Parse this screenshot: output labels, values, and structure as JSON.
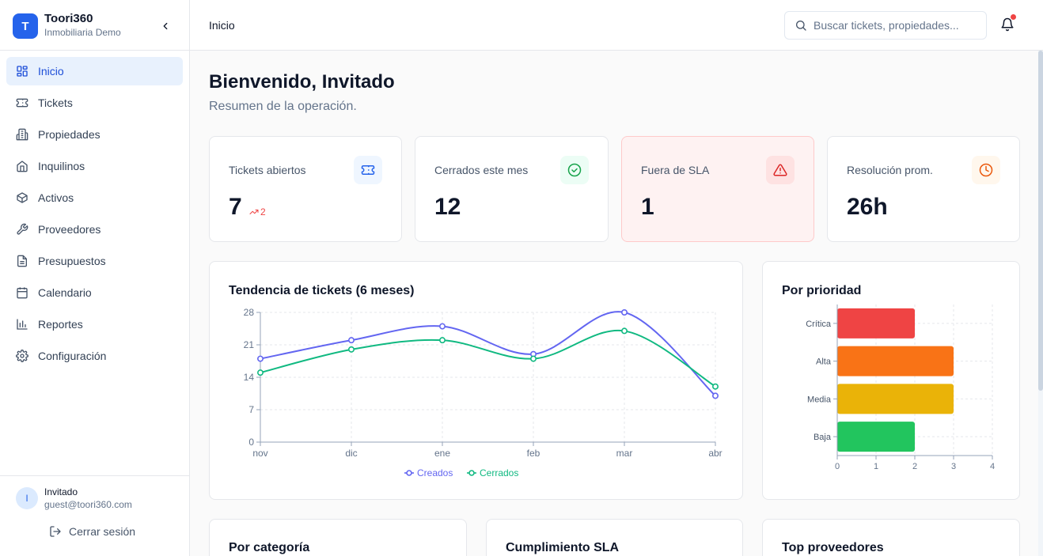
{
  "brand": {
    "initial": "T",
    "name": "Toori360",
    "subtitle": "Inmobiliaria Demo"
  },
  "nav": [
    {
      "label": "Inicio",
      "icon": "grid-icon",
      "active": true
    },
    {
      "label": "Tickets",
      "icon": "ticket-icon"
    },
    {
      "label": "Propiedades",
      "icon": "building-icon"
    },
    {
      "label": "Inquilinos",
      "icon": "home-icon"
    },
    {
      "label": "Activos",
      "icon": "box-icon"
    },
    {
      "label": "Proveedores",
      "icon": "wrench-icon"
    },
    {
      "label": "Presupuestos",
      "icon": "file-icon"
    },
    {
      "label": "Calendario",
      "icon": "calendar-icon"
    },
    {
      "label": "Reportes",
      "icon": "bar-chart-icon"
    },
    {
      "label": "Configuración",
      "icon": "gear-icon"
    }
  ],
  "user": {
    "initial": "I",
    "name": "Invitado",
    "email": "guest@toori360.com",
    "logout_label": "Cerrar sesión"
  },
  "header": {
    "title": "Inicio",
    "search_placeholder": "Buscar tickets, propiedades...",
    "has_notifications": true
  },
  "page": {
    "title": "Bienvenido, Invitado",
    "subtitle": "Resumen de la operación."
  },
  "kpis": [
    {
      "label": "Tickets abiertos",
      "value": "7",
      "delta": "2",
      "icon": "ticket-icon",
      "color": "#2563eb"
    },
    {
      "label": "Cerrados este mes",
      "value": "12",
      "icon": "check-circle-icon",
      "color": "#16a34a"
    },
    {
      "label": "Fuera de SLA",
      "value": "1",
      "icon": "alert-triangle-icon",
      "color": "#dc2626"
    },
    {
      "label": "Resolución prom.",
      "value": "26h",
      "icon": "clock-icon",
      "color": "#ea580c"
    }
  ],
  "chart_data": [
    {
      "type": "line",
      "title": "Tendencia de tickets (6 meses)",
      "x": [
        "nov",
        "dic",
        "ene",
        "feb",
        "mar",
        "abr"
      ],
      "series": [
        {
          "name": "Creados",
          "values": [
            18,
            22,
            25,
            19,
            28,
            10
          ],
          "color": "#6366f1"
        },
        {
          "name": "Cerrados",
          "values": [
            15,
            20,
            22,
            18,
            24,
            12
          ],
          "color": "#10b981"
        }
      ],
      "yticks": [
        0,
        7,
        14,
        21,
        28
      ],
      "ylim": [
        0,
        28
      ],
      "grid": true,
      "legend": "bottom"
    },
    {
      "type": "bar",
      "orientation": "horizontal",
      "title": "Por prioridad",
      "categories": [
        "Crítica",
        "Alta",
        "Media",
        "Baja"
      ],
      "values": [
        2,
        3,
        3,
        2
      ],
      "colors": [
        "#ef4444",
        "#f97316",
        "#eab308",
        "#22c55e"
      ],
      "xticks": [
        0,
        1,
        2,
        3,
        4
      ],
      "xlim": [
        0,
        4
      ],
      "grid": true
    }
  ],
  "bottom_cards": [
    {
      "title": "Por categoría"
    },
    {
      "title": "Cumplimiento SLA"
    },
    {
      "title": "Top proveedores"
    }
  ]
}
